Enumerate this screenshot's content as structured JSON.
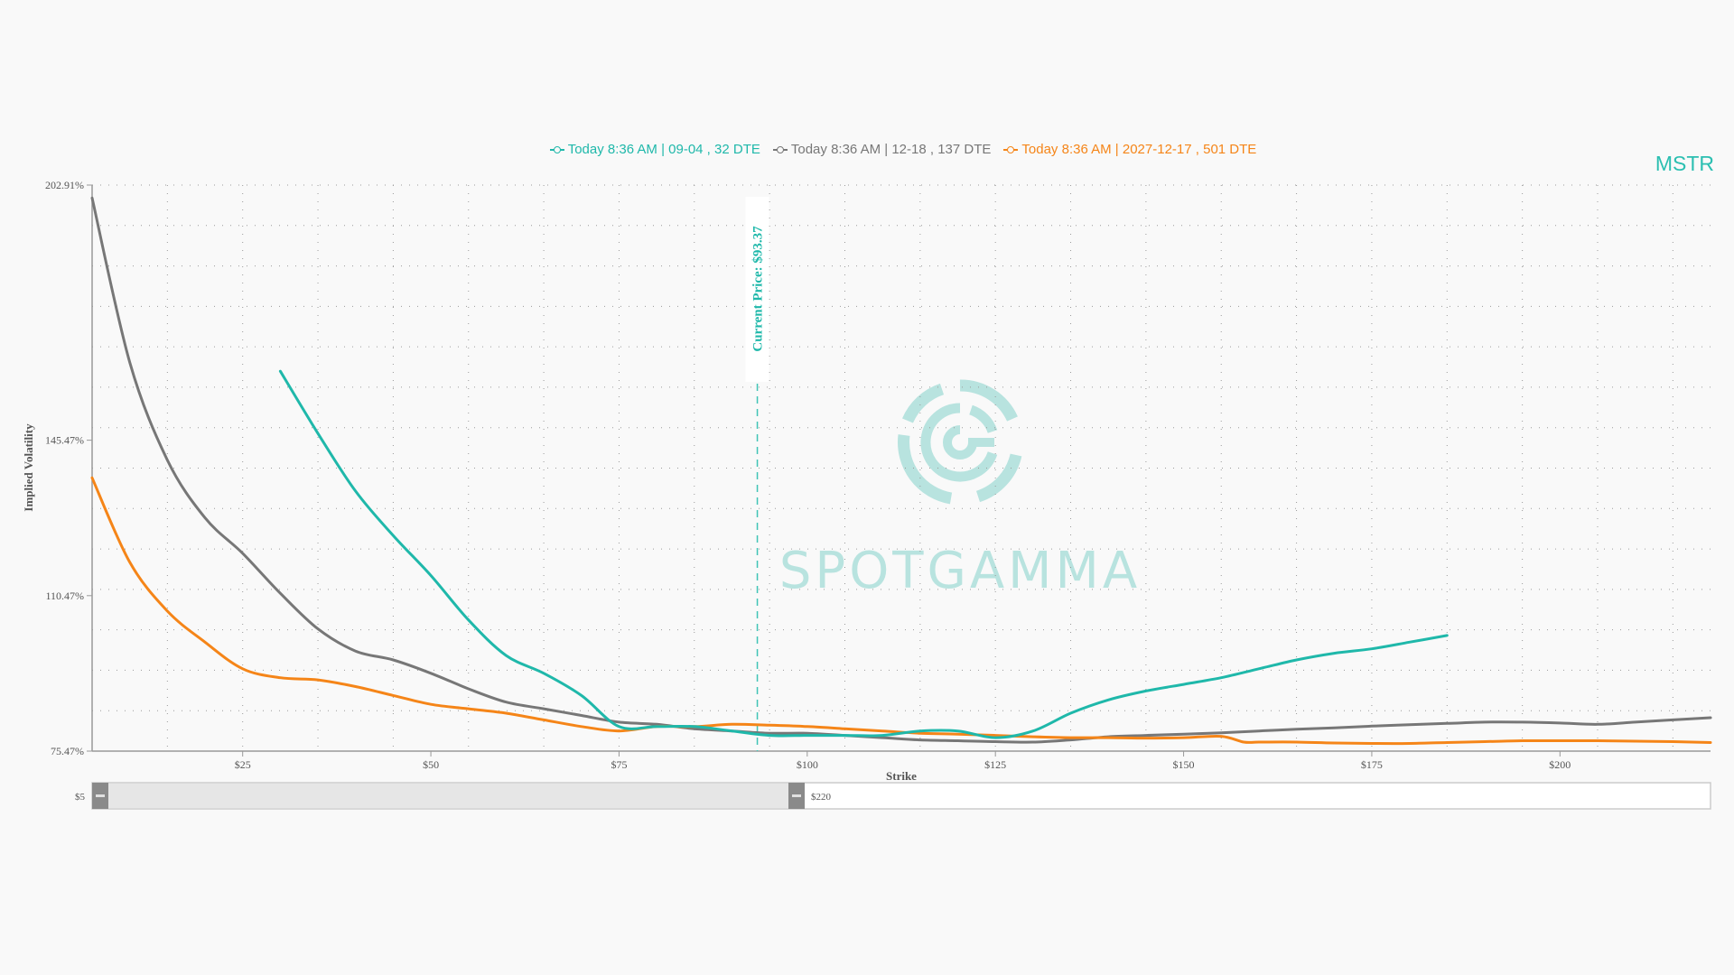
{
  "ticker": "MSTR",
  "watermark": {
    "text": "SPOTGAMMA"
  },
  "colors": {
    "series_0": "#1fb8aa",
    "series_1": "#777777",
    "series_2": "#f58518",
    "price_line": "#3fc4b6",
    "grid": "#9a9a9a"
  },
  "current_price_label": "Current Price: $93.37",
  "range_slider": {
    "min_label": "$5",
    "max_label": "$220"
  },
  "chart_data": {
    "type": "line",
    "xlabel": "Strike",
    "ylabel": "Implied Volatility",
    "xlim": [
      5,
      220
    ],
    "ylim": [
      75.47,
      202.91
    ],
    "x_ticks": [
      25,
      50,
      75,
      100,
      125,
      150,
      175,
      200
    ],
    "x_tick_labels": [
      "$25",
      "$50",
      "$75",
      "$100",
      "$125",
      "$150",
      "$175",
      "$200"
    ],
    "y_ticks": [
      75.47,
      110.47,
      145.47,
      202.91
    ],
    "y_tick_labels": [
      "75.47%",
      "110.47%",
      "145.47%",
      "202.91%"
    ],
    "grid": true,
    "legend_position": "top-center",
    "current_price": 93.37,
    "series": [
      {
        "name": "Today 8:36 AM | 09-04 , 32 DTE",
        "x": [
          30,
          35,
          40,
          45,
          50,
          55,
          60,
          65,
          70,
          75,
          80,
          85,
          90,
          95,
          100,
          105,
          110,
          115,
          120,
          125,
          130,
          135,
          140,
          145,
          150,
          155,
          160,
          165,
          170,
          175,
          180,
          185
        ],
        "y": [
          161,
          147,
          134,
          124,
          115,
          105,
          97,
          93,
          88,
          81,
          81,
          81,
          80,
          79,
          79,
          79,
          79,
          80,
          80,
          78.5,
          80,
          84,
          87,
          89,
          90.5,
          92,
          94,
          96,
          97.5,
          98.5,
          100,
          101.5
        ]
      },
      {
        "name": "Today 8:36 AM | 12-18 , 137 DTE",
        "x": [
          5,
          10,
          15,
          20,
          25,
          30,
          35,
          40,
          45,
          50,
          55,
          60,
          65,
          70,
          75,
          80,
          85,
          90,
          95,
          100,
          105,
          110,
          115,
          120,
          125,
          130,
          135,
          140,
          145,
          150,
          155,
          160,
          165,
          170,
          175,
          180,
          185,
          190,
          195,
          200,
          205,
          210,
          215,
          220
        ],
        "y": [
          200,
          163,
          141,
          128,
          120,
          111,
          103,
          98,
          96,
          93,
          89.5,
          86.5,
          85,
          83.5,
          82,
          81.5,
          80.5,
          80,
          79.5,
          79.5,
          79,
          78.5,
          78,
          77.8,
          77.6,
          77.5,
          78,
          78.7,
          79,
          79.3,
          79.6,
          80,
          80.4,
          80.7,
          81.1,
          81.4,
          81.7,
          82,
          82,
          81.8,
          81.5,
          82,
          82.5,
          83
        ]
      },
      {
        "name": "Today 8:36 AM | 2027-12-17 , 501 DTE",
        "x": [
          5,
          10,
          15,
          20,
          25,
          30,
          35,
          40,
          45,
          50,
          55,
          60,
          65,
          70,
          75,
          80,
          85,
          90,
          95,
          100,
          105,
          110,
          115,
          120,
          125,
          130,
          135,
          140,
          145,
          150,
          155,
          158,
          160,
          165,
          170,
          175,
          180,
          185,
          190,
          195,
          200,
          205,
          210,
          215,
          220
        ],
        "y": [
          137,
          118,
          107,
          100,
          94,
          92,
          91.5,
          90,
          88,
          86,
          85,
          84,
          82.5,
          81,
          80,
          81,
          81,
          81.5,
          81.3,
          81,
          80.5,
          80,
          79.5,
          79.3,
          79,
          78.7,
          78.5,
          78.5,
          78.4,
          78.5,
          78.8,
          77.5,
          77.5,
          77.5,
          77.3,
          77.2,
          77.2,
          77.4,
          77.6,
          77.8,
          77.8,
          77.8,
          77.7,
          77.6,
          77.4
        ]
      }
    ]
  }
}
